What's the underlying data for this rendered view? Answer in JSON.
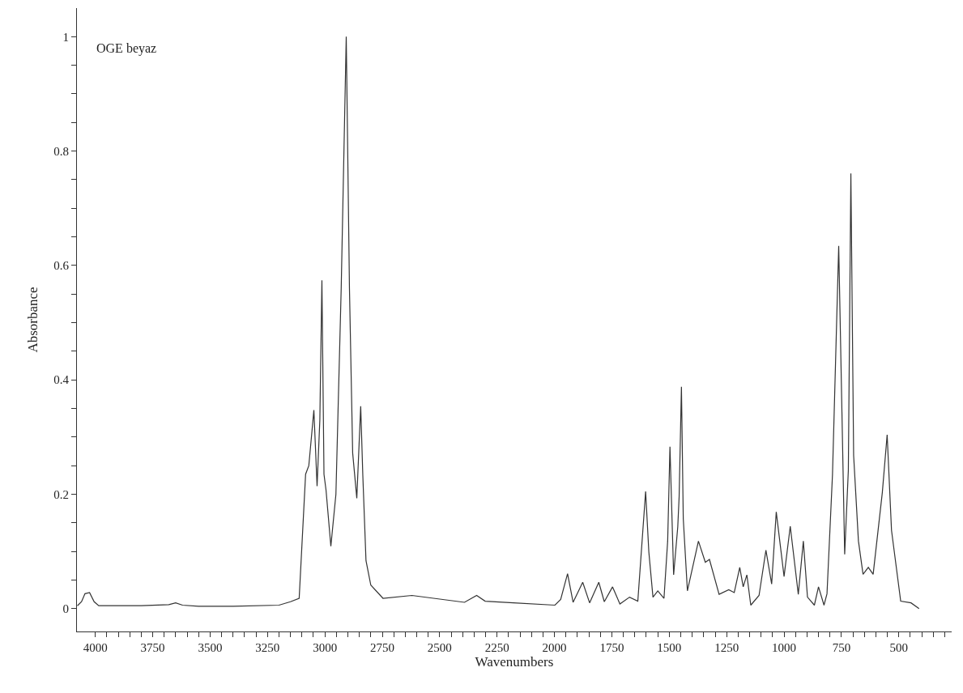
{
  "chart_data": {
    "type": "line",
    "xlabel": "Wavenumbers",
    "ylabel": "Absorbance",
    "annotations": [
      "OGE beyaz"
    ],
    "xlim": [
      4080,
      270
    ],
    "ylim": [
      -0.04,
      1.05
    ],
    "xticks": [
      4000,
      {
        "value": 3950,
        "label": null
      },
      {
        "value": 3900,
        "label": null
      },
      {
        "value": 3850,
        "label": null
      },
      {
        "value": 3800,
        "label": null
      },
      3750,
      {
        "value": 3700,
        "label": null
      },
      {
        "value": 3650,
        "label": null
      },
      {
        "value": 3600,
        "label": null
      },
      {
        "value": 3550,
        "label": null
      },
      3500,
      {
        "value": 3450,
        "label": null
      },
      {
        "value": 3400,
        "label": null
      },
      {
        "value": 3350,
        "label": null
      },
      {
        "value": 3300,
        "label": null
      },
      3250,
      {
        "value": 3200,
        "label": null
      },
      {
        "value": 3150,
        "label": null
      },
      {
        "value": 3100,
        "label": null
      },
      {
        "value": 3050,
        "label": null
      },
      3000,
      {
        "value": 2950,
        "label": null
      },
      {
        "value": 2900,
        "label": null
      },
      {
        "value": 2850,
        "label": null
      },
      {
        "value": 2800,
        "label": null
      },
      2750,
      {
        "value": 2700,
        "label": null
      },
      {
        "value": 2650,
        "label": null
      },
      {
        "value": 2600,
        "label": null
      },
      {
        "value": 2550,
        "label": null
      },
      2500,
      {
        "value": 2450,
        "label": null
      },
      {
        "value": 2400,
        "label": null
      },
      {
        "value": 2350,
        "label": null
      },
      {
        "value": 2300,
        "label": null
      },
      2250,
      {
        "value": 2200,
        "label": null
      },
      {
        "value": 2150,
        "label": null
      },
      {
        "value": 2100,
        "label": null
      },
      {
        "value": 2050,
        "label": null
      },
      2000,
      {
        "value": 1950,
        "label": null
      },
      {
        "value": 1900,
        "label": null
      },
      {
        "value": 1850,
        "label": null
      },
      {
        "value": 1800,
        "label": null
      },
      1750,
      {
        "value": 1700,
        "label": null
      },
      {
        "value": 1650,
        "label": null
      },
      {
        "value": 1600,
        "label": null
      },
      {
        "value": 1550,
        "label": null
      },
      1500,
      {
        "value": 1450,
        "label": null
      },
      {
        "value": 1400,
        "label": null
      },
      {
        "value": 1350,
        "label": null
      },
      {
        "value": 1300,
        "label": null
      },
      1250,
      {
        "value": 1200,
        "label": null
      },
      {
        "value": 1150,
        "label": null
      },
      {
        "value": 1100,
        "label": null
      },
      {
        "value": 1050,
        "label": null
      },
      1000,
      {
        "value": 950,
        "label": null
      },
      {
        "value": 900,
        "label": null
      },
      {
        "value": 850,
        "label": null
      },
      {
        "value": 800,
        "label": null
      },
      750,
      {
        "value": 700,
        "label": null
      },
      {
        "value": 650,
        "label": null
      },
      {
        "value": 600,
        "label": null
      },
      {
        "value": 550,
        "label": null
      },
      500,
      {
        "value": 450,
        "label": null
      },
      {
        "value": 400,
        "label": null
      },
      {
        "value": 350,
        "label": null
      },
      {
        "value": 300,
        "label": null
      }
    ],
    "yticks": [
      0,
      {
        "value": 0.05,
        "label": null
      },
      {
        "value": 0.1,
        "label": null
      },
      {
        "value": 0.15,
        "label": null
      },
      0.2,
      {
        "value": 0.25,
        "label": null
      },
      {
        "value": 0.3,
        "label": null
      },
      {
        "value": 0.35,
        "label": null
      },
      0.4,
      {
        "value": 0.45,
        "label": null
      },
      {
        "value": 0.5,
        "label": null
      },
      {
        "value": 0.55,
        "label": null
      },
      0.6,
      {
        "value": 0.65,
        "label": null
      },
      {
        "value": 0.7,
        "label": null
      },
      {
        "value": 0.75,
        "label": null
      },
      0.8,
      {
        "value": 0.85,
        "label": null
      },
      {
        "value": 0.9,
        "label": null
      },
      {
        "value": 0.95,
        "label": null
      },
      1
    ],
    "marker": "none",
    "line_style": "solid",
    "series": [
      {
        "color": "#333333",
        "x": [
          4078,
          4060,
          4045,
          4025,
          4005,
          3985,
          3800,
          3680,
          3650,
          3620,
          3550,
          3400,
          3200,
          3150,
          3112,
          3084,
          3070,
          3048,
          3034,
          3022,
          3013,
          3004,
          2995,
          2974,
          2952,
          2929,
          2907,
          2893,
          2879,
          2861,
          2844,
          2835,
          2821,
          2800,
          2747,
          2621,
          2392,
          2339,
          2302,
          2179,
          1998,
          1973,
          1943,
          1919,
          1877,
          1847,
          1807,
          1783,
          1747,
          1715,
          1673,
          1637,
          1603,
          1589,
          1571,
          1550,
          1523,
          1507,
          1497,
          1481,
          1463,
          1457,
          1447,
          1439,
          1421,
          1373,
          1343,
          1325,
          1283,
          1241,
          1217,
          1193,
          1178,
          1162,
          1145,
          1109,
          1079,
          1054,
          1034,
          1000,
          973,
          938,
          916,
          898,
          868,
          850,
          826,
          813,
          789,
          762,
          749,
          736,
          720,
          709,
          697,
          676,
          656,
          633,
          612,
          572,
          551,
          532,
          492,
          447,
          412
        ],
        "values": [
          0.005,
          0.012,
          0.026,
          0.028,
          0.012,
          0.005,
          0.005,
          0.007,
          0.01,
          0.006,
          0.004,
          0.004,
          0.006,
          0.012,
          0.018,
          0.235,
          0.25,
          0.347,
          0.214,
          0.33,
          0.574,
          0.235,
          0.207,
          0.109,
          0.2,
          0.56,
          1.0,
          0.56,
          0.272,
          0.193,
          0.354,
          0.235,
          0.084,
          0.041,
          0.018,
          0.023,
          0.011,
          0.023,
          0.013,
          0.01,
          0.006,
          0.016,
          0.061,
          0.011,
          0.046,
          0.01,
          0.046,
          0.012,
          0.038,
          0.008,
          0.02,
          0.013,
          0.205,
          0.099,
          0.02,
          0.031,
          0.018,
          0.118,
          0.283,
          0.059,
          0.143,
          0.196,
          0.388,
          0.157,
          0.031,
          0.118,
          0.081,
          0.086,
          0.025,
          0.033,
          0.028,
          0.072,
          0.038,
          0.059,
          0.006,
          0.023,
          0.102,
          0.043,
          0.169,
          0.056,
          0.144,
          0.025,
          0.118,
          0.02,
          0.006,
          0.038,
          0.006,
          0.026,
          0.235,
          0.634,
          0.366,
          0.095,
          0.242,
          0.761,
          0.268,
          0.118,
          0.06,
          0.072,
          0.06,
          0.203,
          0.304,
          0.137,
          0.013,
          0.01,
          0.0
        ]
      }
    ]
  }
}
